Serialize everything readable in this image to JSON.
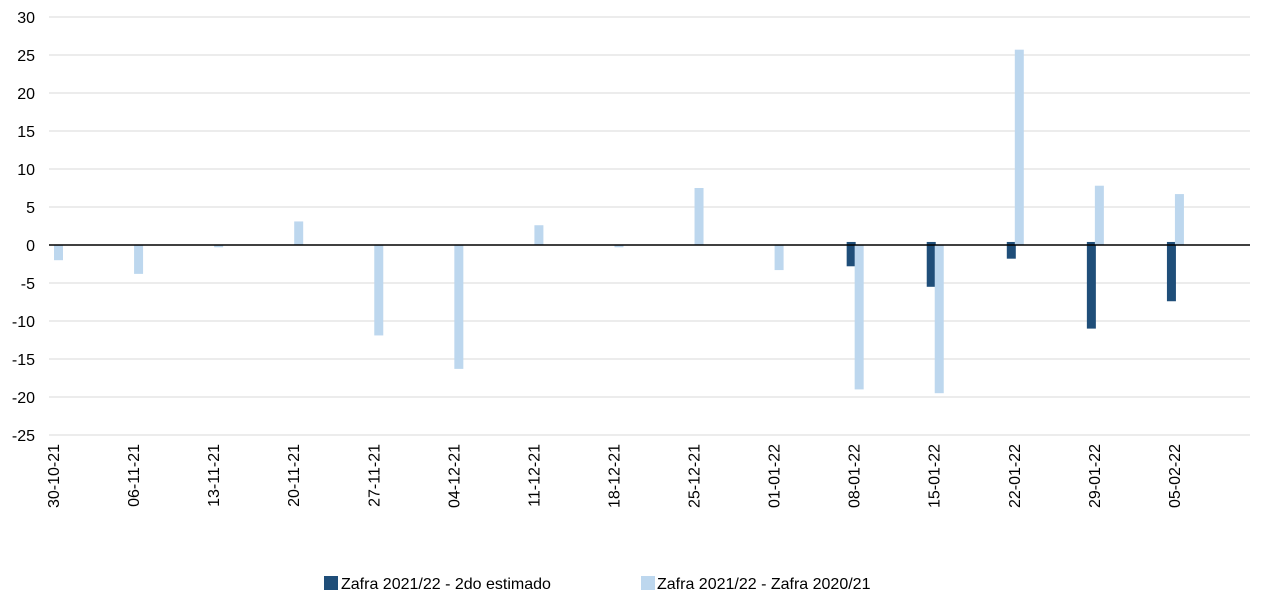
{
  "chart_data": {
    "type": "bar",
    "categories": [
      "30-10-21",
      "06-11-21",
      "13-11-21",
      "20-11-21",
      "27-11-21",
      "04-12-21",
      "11-12-21",
      "18-12-21",
      "25-12-21",
      "01-01-22",
      "08-01-22",
      "15-01-22",
      "22-01-22",
      "29-01-22",
      "05-02-22"
    ],
    "series": [
      {
        "name": "Zafra 2021/22 - 2do estimado",
        "color": "#1f4e79",
        "values": [
          0,
          0,
          0,
          0,
          0,
          0,
          0,
          0,
          0,
          0,
          -2.8,
          -5.5,
          -1.8,
          -11,
          -7.4
        ]
      },
      {
        "name": "Zafra 2021/22 - Zafra 2020/21",
        "color": "#bdd7ee",
        "values": [
          -2,
          -3.8,
          -0.3,
          3.1,
          -11.9,
          -16.3,
          2.6,
          -0.3,
          7.5,
          -3.3,
          -19,
          -19.5,
          25.7,
          7.8,
          6.7
        ]
      }
    ],
    "yticks": [
      "30",
      "25",
      "20",
      "15",
      "10",
      "5",
      "0",
      "-5",
      "-10",
      "-15",
      "-20",
      "-25"
    ],
    "ylim": [
      -25,
      30
    ],
    "grid": true,
    "legend_position": "bottom"
  }
}
